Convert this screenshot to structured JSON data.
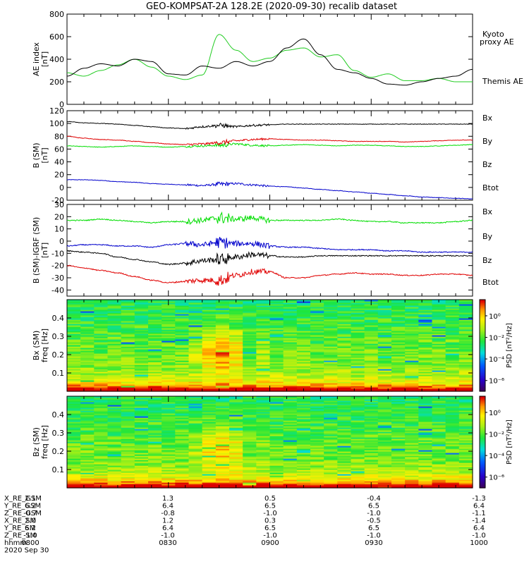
{
  "title": "GEO-KOMPSAT-2A 128.2E (2020-09-30) recalib dataset",
  "colors": {
    "black": "#000000",
    "red": "#e00000",
    "green": "#00dd00",
    "blue": "#0000cc",
    "kyoto": "#22cc22"
  },
  "chart_data": [
    {
      "type": "line",
      "ylabel": "AE index",
      "yunit": "[nT]",
      "ylim": [
        0,
        800
      ],
      "yticks": [
        0,
        200,
        400,
        600,
        800
      ],
      "xlim": [
        0,
        120
      ],
      "x": [
        0,
        5,
        10,
        15,
        20,
        25,
        30,
        35,
        40,
        45,
        50,
        55,
        60,
        65,
        70,
        75,
        80,
        85,
        90,
        95,
        100,
        105,
        110,
        115,
        120
      ],
      "series": [
        {
          "name": "Kyoto proxy AE",
          "color": "#22cc22",
          "values": [
            280,
            250,
            300,
            350,
            400,
            330,
            250,
            220,
            260,
            620,
            480,
            380,
            410,
            480,
            500,
            420,
            440,
            300,
            240,
            270,
            210,
            210,
            230,
            200,
            200
          ]
        },
        {
          "name": "Themis AE",
          "color": "#000000",
          "values": [
            250,
            320,
            360,
            340,
            400,
            380,
            270,
            260,
            340,
            320,
            380,
            340,
            380,
            500,
            580,
            440,
            310,
            280,
            230,
            180,
            170,
            200,
            230,
            250,
            310
          ]
        }
      ]
    },
    {
      "type": "line",
      "ylabel": "B (SM)",
      "yunit": "[nT]",
      "ylim": [
        -20,
        120
      ],
      "yticks": [
        -20,
        0,
        20,
        40,
        60,
        80,
        100,
        120
      ],
      "xlim": [
        0,
        120
      ],
      "x": [
        0,
        5,
        10,
        15,
        20,
        25,
        30,
        35,
        40,
        45,
        50,
        55,
        60,
        65,
        70,
        75,
        80,
        85,
        90,
        95,
        100,
        105,
        110,
        115,
        120
      ],
      "series": [
        {
          "name": "Bx",
          "color": "#0000cc",
          "values": [
            12,
            12,
            11,
            9,
            8,
            6,
            5,
            4,
            3,
            5,
            6,
            4,
            2,
            1,
            -1,
            -3,
            -5,
            -7,
            -9,
            -11,
            -13,
            -15,
            -16,
            -17,
            -18
          ]
        },
        {
          "name": "By",
          "color": "#00dd00",
          "values": [
            65,
            64,
            63,
            64,
            65,
            64,
            63,
            64,
            65,
            66,
            68,
            66,
            65,
            66,
            67,
            66,
            65,
            66,
            66,
            65,
            64,
            64,
            65,
            66,
            67
          ]
        },
        {
          "name": "Bz",
          "color": "#e00000",
          "values": [
            80,
            77,
            75,
            74,
            72,
            70,
            68,
            67,
            68,
            70,
            73,
            75,
            76,
            75,
            74,
            74,
            73,
            72,
            72,
            72,
            71,
            72,
            73,
            74,
            74
          ]
        },
        {
          "name": "Btot",
          "color": "#000000",
          "values": [
            103,
            101,
            100,
            99,
            97,
            95,
            93,
            92,
            95,
            97,
            95,
            97,
            98,
            99,
            99,
            99,
            99,
            99,
            99,
            99,
            99,
            99,
            99,
            99,
            99
          ]
        }
      ]
    },
    {
      "type": "line",
      "ylabel": "B (SM)-IGRF (SM)",
      "yunit": "[nT]",
      "ylim": [
        -45,
        30
      ],
      "yticks": [
        -40,
        -30,
        -20,
        -10,
        0,
        10,
        20,
        30
      ],
      "xlim": [
        0,
        120
      ],
      "x": [
        0,
        5,
        10,
        15,
        20,
        25,
        30,
        35,
        40,
        45,
        50,
        55,
        60,
        65,
        70,
        75,
        80,
        85,
        90,
        95,
        100,
        105,
        110,
        115,
        120
      ],
      "series": [
        {
          "name": "Bx",
          "color": "#0000cc",
          "values": [
            -4,
            -3,
            -3,
            -4,
            -4,
            -5,
            -3,
            -2,
            -3,
            -1,
            -2,
            -2,
            -4,
            -5,
            -5,
            -6,
            -7,
            -7,
            -7,
            -8,
            -8,
            -9,
            -9,
            -9,
            -9
          ]
        },
        {
          "name": "By",
          "color": "#00dd00",
          "values": [
            17,
            17,
            18,
            17,
            16,
            15,
            16,
            16,
            17,
            19,
            18,
            19,
            17,
            17,
            17,
            17,
            18,
            17,
            16,
            16,
            15,
            15,
            15,
            16,
            17
          ]
        },
        {
          "name": "Bz",
          "color": "#e00000",
          "values": [
            -20,
            -22,
            -24,
            -26,
            -29,
            -32,
            -34,
            -33,
            -32,
            -32,
            -28,
            -25,
            -25,
            -30,
            -30,
            -28,
            -27,
            -26,
            -27,
            -27,
            -28,
            -28,
            -27,
            -27,
            -28
          ]
        },
        {
          "name": "Btot",
          "color": "#000000",
          "values": [
            -8,
            -9,
            -10,
            -13,
            -15,
            -17,
            -19,
            -18,
            -16,
            -15,
            -13,
            -11,
            -12,
            -13,
            -13,
            -12,
            -12,
            -12,
            -12,
            -12,
            -12,
            -12,
            -12,
            -12,
            -12
          ]
        }
      ]
    },
    {
      "type": "heatmap",
      "ylabel": "Bx (SM)",
      "yunit": "freq [Hz]",
      "ylim": [
        0,
        0.5
      ],
      "yticks": [
        0.1,
        0.2,
        0.3,
        0.4
      ],
      "xlim": [
        0,
        120
      ],
      "colorbar": {
        "label": "PSD [nT²/Hz]",
        "ticks": [
          "10⁰",
          "10⁻²",
          "10⁻⁴",
          "10⁻⁶"
        ],
        "range": [
          -7,
          1.5
        ]
      }
    },
    {
      "type": "heatmap",
      "ylabel": "Bz (SM)",
      "yunit": "freq [Hz]",
      "ylim": [
        0,
        0.5
      ],
      "yticks": [
        0.1,
        0.2,
        0.3,
        0.4
      ],
      "xlim": [
        0,
        120
      ],
      "colorbar": {
        "label": "PSD [nT²/Hz]",
        "ticks": [
          "10⁰",
          "10⁻²",
          "10⁻⁴",
          "10⁻⁶"
        ],
        "range": [
          -7,
          1.5
        ]
      }
    }
  ],
  "ephemeris": {
    "labels": [
      "X_RE_GSM",
      "Y_RE_GSM",
      "Z_RE_GSM",
      "X_RE_SM",
      "Y_RE_SM",
      "Z_RE_SM",
      "hhmm"
    ],
    "columns": [
      [
        "2.1",
        "6.2",
        "-0.7",
        "2.0",
        "6.2",
        "-1.0",
        "0800"
      ],
      [
        "1.3",
        "6.4",
        "-0.8",
        "1.2",
        "6.4",
        "-1.0",
        "0830"
      ],
      [
        "0.5",
        "6.5",
        "-1.0",
        "0.3",
        "6.5",
        "-1.0",
        "0900"
      ],
      [
        "-0.4",
        "6.5",
        "-1.0",
        "-0.5",
        "6.5",
        "-1.0",
        "0930"
      ],
      [
        "-1.3",
        "6.4",
        "-1.1",
        "-1.4",
        "6.4",
        "-1.0",
        "1000"
      ]
    ],
    "date": "2020 Sep 30"
  }
}
